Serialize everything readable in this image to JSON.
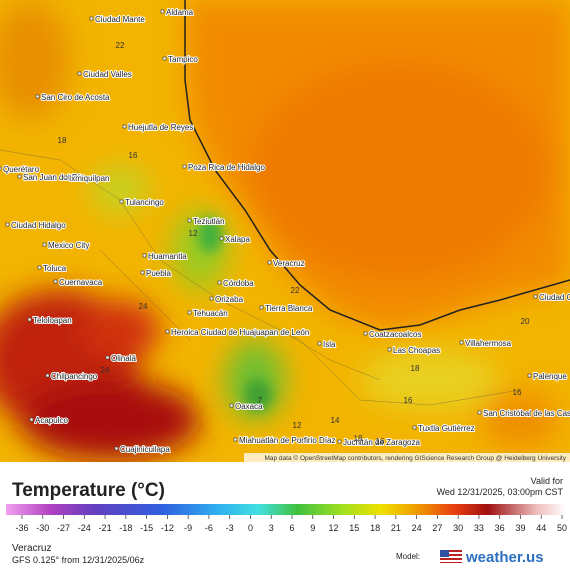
{
  "map": {
    "attribution": "Map data © OpenStreetMap contributors, rendering GIScience Research Group @ Heidelberg University",
    "cities": [
      "Aldama",
      "Ciudad Mante",
      "Tampico",
      "Ciudad Valles",
      "San Ciro de Acosta",
      "Huejutla de Reyes",
      "Poza Rica de Hidalgo",
      "Querétaro",
      "San Juan del Río",
      "Ixmiquilpan",
      "Tulancingo",
      "Teziutlán",
      "Ciudad Hidalgo",
      "Xalapa",
      "Mexico City",
      "Huamantla",
      "Veracruz",
      "Toluca",
      "Puebla",
      "Cuernavaca",
      "Córdoba",
      "Orizaba",
      "Tierra Blanca",
      "Tehuacán",
      "Ciudad Cármen",
      "Teloloapan",
      "Coatzacoalcos",
      "Heroica Ciudad de Huajuapan de León",
      "Las Choapas",
      "Villahermosa",
      "Isla",
      "Olinalá",
      "Chilpancingo",
      "Palenque",
      "Oaxaca",
      "San Cristóbal de las Casas",
      "Acapulco",
      "Tuxtla Gutiérrez",
      "Miahuatlán de Porfirio Díaz",
      "Juchitán de Zaragoza",
      "Cuajinicuilapa"
    ],
    "temperatures": [
      22,
      18,
      16,
      12,
      22,
      24,
      24,
      7,
      12,
      14,
      16,
      16,
      18,
      16,
      20,
      18
    ]
  },
  "legend": {
    "title": "Temperature (°C)",
    "valid_label": "Valid for",
    "valid_time": "Wed 12/31/2025, 03:00pm CST",
    "ticks": [
      -36,
      -30,
      -27,
      -24,
      -21,
      -18,
      -15,
      -12,
      -9,
      -6,
      -3,
      0,
      3,
      6,
      9,
      12,
      15,
      18,
      21,
      24,
      27,
      30,
      33,
      36,
      39,
      44,
      50
    ]
  },
  "footer": {
    "location": "Veracruz",
    "run": "GFS 0.125° from 12/31/2025/06z",
    "model_label": "Model:",
    "brand": "weather.us"
  }
}
